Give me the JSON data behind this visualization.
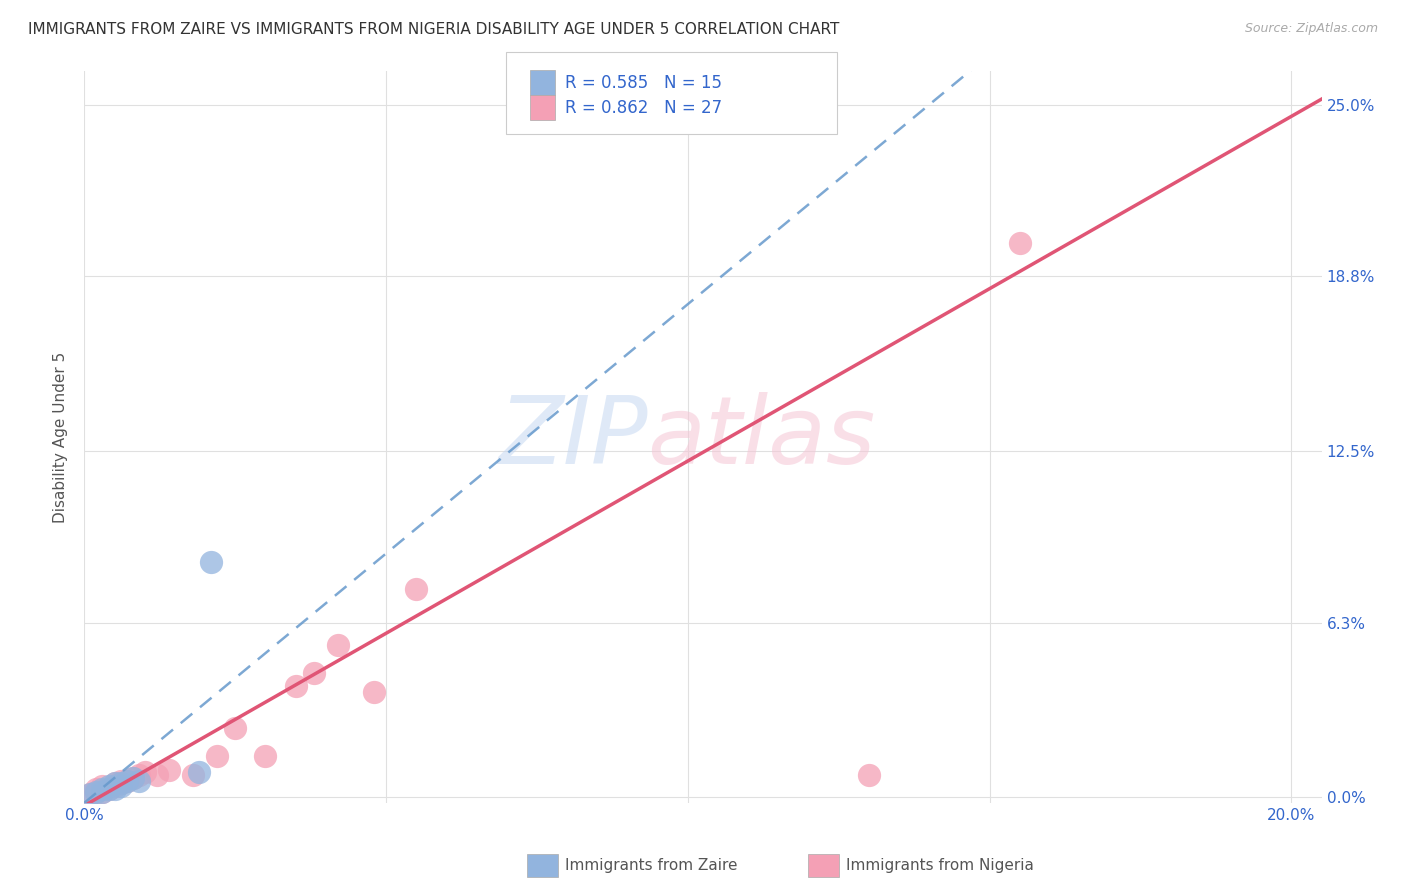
{
  "title": "IMMIGRANTS FROM ZAIRE VS IMMIGRANTS FROM NIGERIA DISABILITY AGE UNDER 5 CORRELATION CHART",
  "source": "Source: ZipAtlas.com",
  "ylabel": "Disability Age Under 5",
  "xlim": [
    0.0,
    0.205
  ],
  "ylim": [
    -0.002,
    0.262
  ],
  "xtick_positions": [
    0.0,
    0.05,
    0.1,
    0.15,
    0.2
  ],
  "xtick_labels": [
    "0.0%",
    "",
    "",
    "",
    "20.0%"
  ],
  "ytick_positions": [
    0.0,
    0.063,
    0.125,
    0.188,
    0.25
  ],
  "ytick_labels": [
    "0.0%",
    "6.3%",
    "12.5%",
    "18.8%",
    "25.0%"
  ],
  "zaire_color": "#92b4de",
  "nigeria_color": "#f4a0b5",
  "zaire_line_color": "#6699cc",
  "nigeria_line_color": "#e05575",
  "zaire_R": 0.585,
  "zaire_N": 15,
  "nigeria_R": 0.862,
  "nigeria_N": 27,
  "zaire_x": [
    0.001,
    0.002,
    0.003,
    0.003,
    0.004,
    0.004,
    0.005,
    0.005,
    0.006,
    0.006,
    0.007,
    0.008,
    0.009,
    0.021,
    0.019
  ],
  "zaire_y": [
    0.001,
    0.002,
    0.002,
    0.003,
    0.003,
    0.004,
    0.003,
    0.005,
    0.004,
    0.005,
    0.006,
    0.007,
    0.006,
    0.085,
    0.009
  ],
  "nigeria_x": [
    0.001,
    0.002,
    0.002,
    0.003,
    0.003,
    0.004,
    0.005,
    0.005,
    0.006,
    0.006,
    0.007,
    0.008,
    0.009,
    0.01,
    0.012,
    0.014,
    0.018,
    0.022,
    0.025,
    0.03,
    0.035,
    0.038,
    0.042,
    0.048,
    0.055,
    0.13,
    0.155
  ],
  "nigeria_y": [
    0.001,
    0.002,
    0.003,
    0.002,
    0.004,
    0.003,
    0.004,
    0.005,
    0.005,
    0.006,
    0.006,
    0.007,
    0.008,
    0.009,
    0.008,
    0.01,
    0.008,
    0.015,
    0.025,
    0.015,
    0.04,
    0.045,
    0.055,
    0.038,
    0.075,
    0.008,
    0.2
  ],
  "background_color": "#ffffff",
  "grid_color": "#e0e0e0",
  "tick_color": "#3366cc",
  "title_fontsize": 11,
  "ylabel_fontsize": 11,
  "tick_fontsize": 11,
  "legend_fontsize": 12,
  "source_fontsize": 9
}
